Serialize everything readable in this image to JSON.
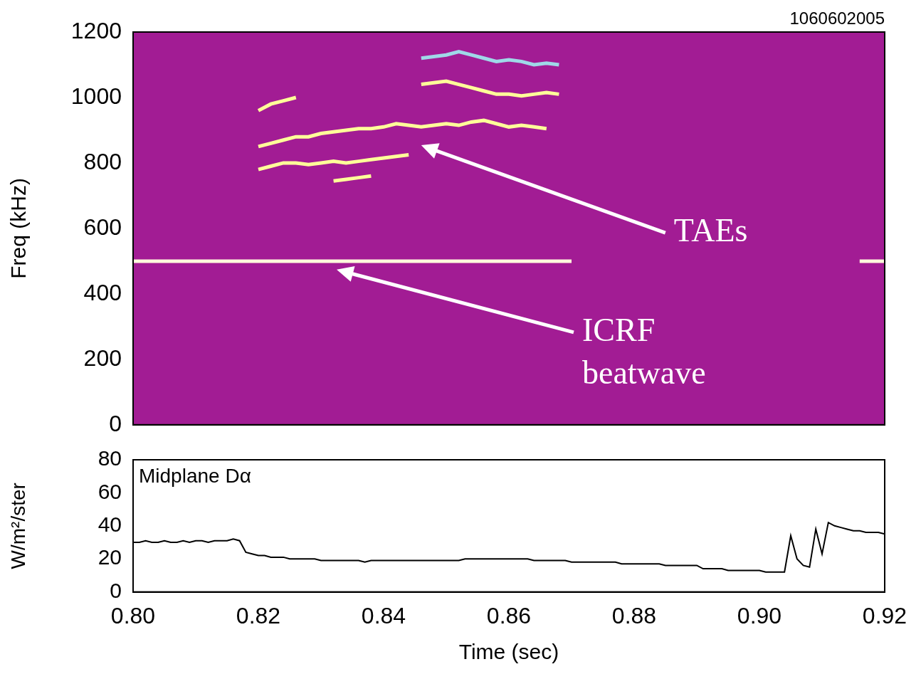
{
  "chart_data": [
    {
      "type": "line",
      "title": "1060602005",
      "y_label": "Freq (kHz)",
      "annotations": [
        {
          "text": "TAEs",
          "x": 0.846,
          "y": 854
        },
        {
          "text": "ICRF beatwave",
          "x": 0.8325,
          "y": 474
        }
      ],
      "x": [
        0.8,
        0.802,
        0.804,
        0.806,
        0.808,
        0.81,
        0.812,
        0.814,
        0.816,
        0.818,
        0.82,
        0.822,
        0.824,
        0.826,
        0.828,
        0.83,
        0.832,
        0.834,
        0.836,
        0.838,
        0.84,
        0.842,
        0.844,
        0.846,
        0.848,
        0.85,
        0.852,
        0.854,
        0.856,
        0.858,
        0.86,
        0.862,
        0.864,
        0.866,
        0.868,
        0.87,
        0.872,
        0.874,
        0.876,
        0.878,
        0.88,
        0.882,
        0.884,
        0.886,
        0.888,
        0.89,
        0.892,
        0.894,
        0.896,
        0.898,
        0.9,
        0.902,
        0.904,
        0.906,
        0.908,
        0.91,
        0.912,
        0.914,
        0.916,
        0.918,
        0.92
      ],
      "series": [
        {
          "color": "#fff8dc",
          "values": [
            500,
            500,
            500,
            500,
            500,
            500,
            500,
            500,
            500,
            500,
            500,
            500,
            500,
            500,
            500,
            500,
            500,
            500,
            500,
            500,
            500,
            500,
            500,
            500,
            500,
            500,
            500,
            500,
            500,
            500,
            500,
            500,
            500,
            500,
            500,
            500,
            null,
            null,
            null,
            null,
            null,
            null,
            null,
            null,
            null,
            null,
            null,
            null,
            null,
            null,
            null,
            null,
            null,
            null,
            null,
            null,
            null,
            null,
            500,
            500,
            500
          ]
        },
        {
          "color": "#ffff99",
          "values": [
            null,
            null,
            null,
            null,
            null,
            null,
            null,
            null,
            null,
            null,
            850,
            860,
            870,
            880,
            880,
            890,
            895,
            900,
            905,
            905,
            910,
            920,
            915,
            910,
            915,
            920,
            915,
            925,
            930,
            920,
            910,
            915,
            910,
            905,
            null,
            null,
            null,
            null,
            null,
            null,
            null,
            null,
            null,
            null,
            null,
            null,
            null,
            null,
            null,
            null,
            null,
            null,
            null,
            null,
            null,
            null,
            null,
            null,
            null,
            null,
            null
          ]
        },
        {
          "color": "#ffff99",
          "values": [
            null,
            null,
            null,
            null,
            null,
            null,
            null,
            null,
            null,
            null,
            960,
            980,
            990,
            1000,
            null,
            null,
            null,
            null,
            null,
            null,
            null,
            null,
            null,
            null,
            null,
            null,
            null,
            null,
            null,
            null,
            null,
            null,
            null,
            null,
            null,
            null,
            null,
            null,
            null,
            null,
            null,
            null,
            null,
            null,
            null,
            null,
            null,
            null,
            null,
            null,
            null,
            null,
            null,
            null,
            null,
            null,
            null,
            null,
            null,
            null,
            null
          ]
        },
        {
          "color": "#ffff99",
          "values": [
            null,
            null,
            null,
            null,
            null,
            null,
            null,
            null,
            null,
            null,
            780,
            790,
            800,
            800,
            795,
            800,
            805,
            800,
            805,
            810,
            815,
            820,
            825,
            null,
            null,
            null,
            null,
            null,
            null,
            null,
            null,
            null,
            null,
            null,
            null,
            null,
            null,
            null,
            null,
            null,
            null,
            null,
            null,
            null,
            null,
            null,
            null,
            null,
            null,
            null,
            null,
            null,
            null,
            null,
            null,
            null,
            null,
            null,
            null,
            null,
            null
          ]
        },
        {
          "color": "#ffff99",
          "values": [
            null,
            null,
            null,
            null,
            null,
            null,
            null,
            null,
            null,
            null,
            null,
            null,
            null,
            null,
            null,
            null,
            745,
            750,
            755,
            760,
            null,
            null,
            null,
            null,
            null,
            null,
            null,
            null,
            null,
            null,
            null,
            null,
            null,
            null,
            null,
            null,
            null,
            null,
            null,
            null,
            null,
            null,
            null,
            null,
            null,
            null,
            null,
            null,
            null,
            null,
            null,
            null,
            null,
            null,
            null,
            null,
            null,
            null,
            null,
            null,
            null
          ]
        },
        {
          "color": "#ffff99",
          "values": [
            null,
            null,
            null,
            null,
            null,
            null,
            null,
            null,
            null,
            null,
            null,
            null,
            null,
            null,
            null,
            null,
            null,
            null,
            null,
            null,
            null,
            null,
            null,
            1040,
            1045,
            1050,
            1040,
            1030,
            1020,
            1010,
            1010,
            1005,
            1010,
            1015,
            1010,
            null,
            null,
            null,
            null,
            null,
            null,
            null,
            null,
            null,
            null,
            null,
            null,
            null,
            null,
            null,
            null,
            null,
            null,
            null,
            null,
            null,
            null,
            null,
            null,
            null,
            null
          ]
        },
        {
          "color": "#9fd8e8",
          "values": [
            null,
            null,
            null,
            null,
            null,
            null,
            null,
            null,
            null,
            null,
            null,
            null,
            null,
            null,
            null,
            null,
            null,
            null,
            null,
            null,
            null,
            null,
            null,
            1120,
            1125,
            1130,
            1140,
            1130,
            1120,
            1110,
            1115,
            1110,
            1100,
            1105,
            1100,
            null,
            null,
            null,
            null,
            null,
            null,
            null,
            null,
            null,
            null,
            null,
            null,
            null,
            null,
            null,
            null,
            null,
            null,
            null,
            null,
            null,
            null,
            null,
            null,
            null,
            null
          ]
        }
      ],
      "xlim": [
        0.8,
        0.92
      ],
      "xticks": [
        {
          "value": 0.8,
          "label": "0.80"
        },
        0.82,
        0.84,
        0.86,
        0.88,
        {
          "value": 0.9,
          "label": "0.90"
        },
        0.92
      ],
      "ylim": [
        0,
        1200
      ],
      "yticks": [
        0,
        200,
        400,
        600,
        800,
        1000,
        1200
      ],
      "tick_labels": "y",
      "grid": false
    },
    {
      "type": "line",
      "panel_label": "Midplane Dα",
      "x_label": "Time (sec)",
      "y_label": "W/m²/ster",
      "x": [
        0.8,
        0.801,
        0.802,
        0.803,
        0.804,
        0.805,
        0.806,
        0.807,
        0.808,
        0.809,
        0.81,
        0.811,
        0.812,
        0.813,
        0.814,
        0.815,
        0.816,
        0.817,
        0.818,
        0.819,
        0.82,
        0.821,
        0.822,
        0.823,
        0.824,
        0.825,
        0.826,
        0.827,
        0.828,
        0.829,
        0.83,
        0.831,
        0.832,
        0.833,
        0.834,
        0.835,
        0.836,
        0.837,
        0.838,
        0.839,
        0.84,
        0.841,
        0.842,
        0.843,
        0.844,
        0.845,
        0.846,
        0.847,
        0.848,
        0.849,
        0.85,
        0.851,
        0.852,
        0.853,
        0.854,
        0.855,
        0.856,
        0.857,
        0.858,
        0.859,
        0.86,
        0.861,
        0.862,
        0.863,
        0.864,
        0.865,
        0.866,
        0.867,
        0.868,
        0.869,
        0.87,
        0.871,
        0.872,
        0.873,
        0.874,
        0.875,
        0.876,
        0.877,
        0.878,
        0.879,
        0.88,
        0.881,
        0.882,
        0.883,
        0.884,
        0.885,
        0.886,
        0.887,
        0.888,
        0.889,
        0.89,
        0.891,
        0.892,
        0.893,
        0.894,
        0.895,
        0.896,
        0.897,
        0.898,
        0.899,
        0.9,
        0.901,
        0.902,
        0.903,
        0.904,
        0.905,
        0.906,
        0.907,
        0.908,
        0.909,
        0.91,
        0.911,
        0.912,
        0.913,
        0.914,
        0.915,
        0.916,
        0.917,
        0.918,
        0.919,
        0.92
      ],
      "series": [
        {
          "color": "#000000",
          "values": [
            30,
            30,
            31,
            30,
            30,
            31,
            30,
            30,
            31,
            30,
            31,
            31,
            30,
            31,
            31,
            31,
            32,
            31,
            24,
            23,
            22,
            22,
            21,
            21,
            21,
            20,
            20,
            20,
            20,
            20,
            19,
            19,
            19,
            19,
            19,
            19,
            19,
            18,
            19,
            19,
            19,
            19,
            19,
            19,
            19,
            19,
            19,
            19,
            19,
            19,
            19,
            19,
            19,
            20,
            20,
            20,
            20,
            20,
            20,
            20,
            20,
            20,
            20,
            20,
            19,
            19,
            19,
            19,
            19,
            19,
            18,
            18,
            18,
            18,
            18,
            18,
            18,
            18,
            17,
            17,
            17,
            17,
            17,
            17,
            17,
            16,
            16,
            16,
            16,
            16,
            16,
            14,
            14,
            14,
            14,
            13,
            13,
            13,
            13,
            13,
            13,
            12,
            12,
            12,
            12,
            34,
            20,
            16,
            15,
            38,
            23,
            42,
            40,
            39,
            38,
            37,
            37,
            36,
            36,
            36,
            35
          ]
        }
      ],
      "xlim": [
        0.8,
        0.92
      ],
      "xticks": [
        {
          "value": 0.8,
          "label": "0.80"
        },
        0.82,
        0.84,
        0.86,
        0.88,
        {
          "value": 0.9,
          "label": "0.90"
        },
        0.92
      ],
      "ylim": [
        0,
        80
      ],
      "yticks": [
        0,
        20,
        40,
        60,
        80
      ],
      "grid": false
    }
  ]
}
